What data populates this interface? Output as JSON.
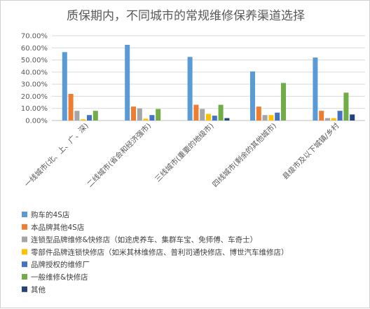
{
  "chart_data": {
    "type": "bar",
    "title": "质保期内，不同城市的常规维修保养渠道选择",
    "xlabel": "",
    "ylabel": "",
    "ylim": [
      0,
      0.7
    ],
    "yticks": [
      "0.00%",
      "10.00%",
      "20.00%",
      "30.00%",
      "40.00%",
      "50.00%",
      "60.00%",
      "70.00%"
    ],
    "grid": true,
    "legend_position": "bottom-left",
    "categories": [
      "一线城市(北、上、广、深)",
      "二线城市(省会和经济强市)",
      "三线城市(重要的地级市)",
      "四线城市(剩余的其他城市)",
      "县级市及以下城镇/乡村"
    ],
    "series": [
      {
        "name": "购车的4S店",
        "color": "#5b9bd5",
        "values": [
          0.565,
          0.625,
          0.525,
          0.405,
          0.52
        ]
      },
      {
        "name": "本品牌其他4S店",
        "color": "#ed7d31",
        "values": [
          0.22,
          0.115,
          0.13,
          0.115,
          0.08
        ]
      },
      {
        "name": "连锁型品牌维修&快修店（如途虎养车、集群车宝、免师傅、车奇士）",
        "color": "#a5a5a5",
        "values": [
          0.08,
          0.1,
          0.095,
          0.045,
          0.02
        ]
      },
      {
        "name": "零部件品牌连锁快修店（如米其林维修店、普利司通快修店、博世汽车维修店）",
        "color": "#ffc000",
        "values": [
          0.01,
          0.015,
          0.055,
          0.045,
          0.02
        ]
      },
      {
        "name": "品牌授权的维修厂",
        "color": "#4472c4",
        "values": [
          0.045,
          0.045,
          0.04,
          0.065,
          0.08
        ]
      },
      {
        "name": "一般维修&快修店",
        "color": "#70ad47",
        "values": [
          0.08,
          0.095,
          0.13,
          0.31,
          0.23
        ]
      },
      {
        "name": "其他",
        "color": "#264478",
        "values": [
          0.0,
          0.0,
          0.02,
          0.0,
          0.05
        ]
      }
    ]
  }
}
